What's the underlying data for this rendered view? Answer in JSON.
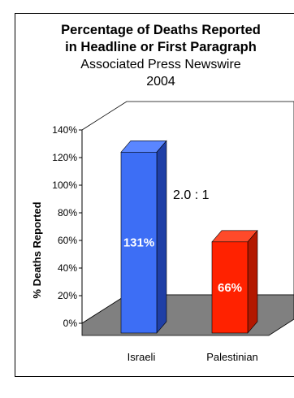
{
  "chart_data": {
    "type": "bar",
    "title": "Percentage of Deaths Reported",
    "title_line2": "in Headline or First Paragraph",
    "subtitle": "Associated Press Newswire",
    "subtitle_line2": "2004",
    "ylabel": "% Deaths Reported",
    "xlabel": "",
    "categories": [
      "Israeli",
      "Palestinian"
    ],
    "values": [
      131,
      66
    ],
    "data_labels": [
      "131%",
      "66%"
    ],
    "ylim": [
      0,
      140
    ],
    "yticks": [
      0,
      20,
      40,
      60,
      80,
      100,
      120,
      140
    ],
    "ytick_labels": [
      "0%",
      "20%",
      "40%",
      "60%",
      "80%",
      "100%",
      "120%",
      "140%"
    ],
    "annotation": "2.0 : 1",
    "colors": {
      "Israeli": {
        "front": "#3d6ef5",
        "side": "#1f3fa6",
        "top": "#5a86ff"
      },
      "Palestinian": {
        "front": "#ff2200",
        "side": "#b31800",
        "top": "#ff4a2a"
      }
    },
    "floor_color": "#808080",
    "three_d": true,
    "grid": false,
    "legend": "none"
  }
}
